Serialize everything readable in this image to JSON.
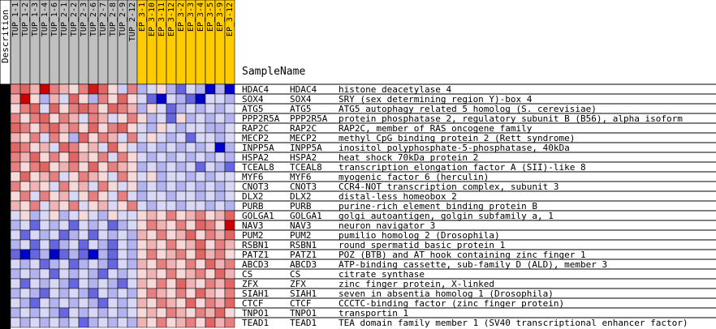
{
  "chart_data": {
    "type": "heatmap",
    "header": {
      "description_label": "Descrition",
      "sample_name_label": "SampleName"
    },
    "columns": [
      "TUP_1-1",
      "TUP_1-2",
      "TUP_1-3",
      "TUP_1-4",
      "TUP_1-6",
      "TUP_2-1",
      "TUP_2-2",
      "TUP_2-3",
      "TUP_2-6",
      "TUP_2-7",
      "TUP_2-8",
      "TUP_2-9",
      "TUP_2-12",
      "EP_3-1",
      "EP_3-10",
      "EP_3-11",
      "EP_3-12",
      "EP_3-2",
      "EP_3-3",
      "EP_3-4",
      "EP_3-5",
      "EP_3-9",
      "EP_3-12"
    ],
    "column_groups": [
      {
        "name": "TUP",
        "count": 13,
        "color": "#c0c0c0"
      },
      {
        "name": "EP",
        "count": 10,
        "color": "#ffcc00"
      }
    ],
    "rows": [
      {
        "name": "HDAC4",
        "symbol": "HDAC4",
        "desc": "histone deacetylase 4"
      },
      {
        "name": "SOX4",
        "symbol": "SOX4",
        "desc": "SRY (sex determining region Y)-box 4"
      },
      {
        "name": "ATG5",
        "symbol": "ATG5",
        "desc": "ATG5 autophagy related 5 homolog (S. cerevisiae)"
      },
      {
        "name": "PPP2R5A",
        "symbol": "PPP2R5A",
        "desc": "protein phosphatase 2, regulatory subunit B (B56), alpha isoform"
      },
      {
        "name": "RAP2C",
        "symbol": "RAP2C",
        "desc": "RAP2C, member of RAS oncogene family"
      },
      {
        "name": "MECP2",
        "symbol": "MECP2",
        "desc": "methyl CpG binding protein 2 (Rett syndrome)"
      },
      {
        "name": "INPP5A",
        "symbol": "INPP5A",
        "desc": "inositol polyphosphate-5-phosphatase, 40kDa"
      },
      {
        "name": "HSPA2",
        "symbol": "HSPA2",
        "desc": "heat shock 70kDa protein 2"
      },
      {
        "name": "TCEAL8",
        "symbol": "TCEAL8",
        "desc": "transcription elongation factor A (SII)-like 8"
      },
      {
        "name": "MYF6",
        "symbol": "MYF6",
        "desc": "myogenic factor 6 (herculin)"
      },
      {
        "name": "CNOT3",
        "symbol": "CNOT3",
        "desc": "CCR4-NOT transcription complex, subunit 3"
      },
      {
        "name": "DLX2",
        "symbol": "DLX2",
        "desc": "distal-less homeobox 2"
      },
      {
        "name": "PURB",
        "symbol": "PURB",
        "desc": "purine-rich element binding protein B"
      },
      {
        "name": "GOLGA1",
        "symbol": "GOLGA1",
        "desc": "golgi autoantigen, golgin subfamily a, 1"
      },
      {
        "name": "NAV3",
        "symbol": "NAV3",
        "desc": "neuron navigator 3"
      },
      {
        "name": "PUM2",
        "symbol": "PUM2",
        "desc": "pumilio homolog 2 (Drosophila)"
      },
      {
        "name": "RSBN1",
        "symbol": "RSBN1",
        "desc": "round spermatid basic protein 1"
      },
      {
        "name": "PATZ1",
        "symbol": "PATZ1",
        "desc": "POZ (BTB) and AT hook containing zinc finger 1"
      },
      {
        "name": "ABCD3",
        "symbol": "ABCD3",
        "desc": "ATP-binding cassette, sub-family D (ALD), member 3"
      },
      {
        "name": "CS",
        "symbol": "CS",
        "desc": "citrate synthase"
      },
      {
        "name": "ZFX",
        "symbol": "ZFX",
        "desc": "zinc finger protein, X-linked"
      },
      {
        "name": "SIAH1",
        "symbol": "SIAH1",
        "desc": "seven in absentia homolog 1 (Drosophila)"
      },
      {
        "name": "CTCF",
        "symbol": "CTCF",
        "desc": "CCCTC-binding factor (zinc finger protein)"
      },
      {
        "name": "TNPO1",
        "symbol": "TNPO1",
        "desc": "transportin 1"
      },
      {
        "name": "TEAD1",
        "symbol": "TEAD1",
        "desc": "TEA domain family member 1 (SV40 transcriptional enhancer factor)"
      }
    ],
    "scale": {
      "min": -2,
      "max": 2,
      "low_color": "#0000cc",
      "mid_color": "#ffffff",
      "high_color": "#cc0000"
    },
    "values": [
      [
        1.0,
        1.2,
        0.6,
        2,
        1.0,
        0.6,
        0.3,
        1.0,
        1.8,
        1.2,
        0.3,
        -0.4,
        1.0,
        -0.6,
        -0.3,
        0.3,
        -0.6,
        -1.2,
        -0.3,
        -0.6,
        -2,
        -0.6,
        -2
      ],
      [
        0.6,
        2,
        0.3,
        -0.6,
        0.6,
        -0.3,
        1.2,
        0.3,
        -0.6,
        1.0,
        0.3,
        1.2,
        0.3,
        -0.3,
        -1.2,
        -2,
        -0.3,
        -0.6,
        -1.2,
        -2,
        -0.3,
        -0.3,
        -0.6
      ],
      [
        0.3,
        1.0,
        1.2,
        -0.3,
        1.2,
        0.3,
        1.0,
        1.2,
        1.0,
        0.3,
        1.2,
        1.0,
        0.6,
        -0.6,
        0.3,
        -0.3,
        -1.2,
        -0.6,
        -0.3,
        -0.6,
        -0.3,
        -0.6,
        -0.3
      ],
      [
        1.0,
        0.3,
        1.0,
        1.2,
        0.3,
        1.0,
        0.6,
        -0.3,
        1.0,
        0.6,
        -0.3,
        0.3,
        1.0,
        0.3,
        -0.6,
        -0.3,
        -1.2,
        0.3,
        -0.6,
        -0.3,
        -0.6,
        -0.3,
        -0.6
      ],
      [
        1.2,
        1.0,
        0.3,
        1.0,
        1.2,
        0.6,
        1.0,
        0.3,
        1.2,
        0.3,
        1.0,
        1.2,
        0.3,
        -0.3,
        -0.6,
        0.3,
        -0.3,
        -0.6,
        -0.3,
        -0.3,
        -0.6,
        -0.6,
        -0.3
      ],
      [
        0.6,
        0.3,
        1.0,
        -0.3,
        1.0,
        0.3,
        -0.6,
        1.2,
        0.3,
        1.0,
        0.6,
        -0.3,
        1.0,
        -0.3,
        0.3,
        -0.3,
        -0.6,
        -0.3,
        -1.2,
        -0.3,
        -0.3,
        -0.6,
        -0.3
      ],
      [
        1.2,
        1.0,
        0.3,
        0.6,
        -0.3,
        1.2,
        1.0,
        0.3,
        0.6,
        -0.3,
        1.2,
        0.3,
        -0.3,
        -0.6,
        -0.3,
        -0.6,
        -0.3,
        -0.6,
        -0.3,
        -0.6,
        -0.3,
        -2,
        -0.6
      ],
      [
        1.0,
        0.6,
        1.2,
        0.3,
        1.0,
        0.3,
        1.2,
        0.6,
        0.3,
        1.0,
        -0.3,
        1.0,
        0.3,
        -0.3,
        -0.6,
        -0.3,
        -0.6,
        -0.3,
        -0.6,
        -0.3,
        -0.6,
        -0.3,
        -0.6
      ],
      [
        1.0,
        0.3,
        1.0,
        1.2,
        0.3,
        0.6,
        1.0,
        0.3,
        1.2,
        0.3,
        1.0,
        0.6,
        0.3,
        -0.6,
        -0.3,
        -0.6,
        -0.3,
        -0.6,
        -0.3,
        -1.2,
        -0.3,
        -0.6,
        -1.2
      ],
      [
        0.3,
        1.2,
        0.3,
        0.6,
        1.0,
        -0.3,
        0.3,
        1.0,
        0.6,
        0.3,
        -0.3,
        1.0,
        0.3,
        -0.3,
        0.3,
        -0.6,
        -0.3,
        -0.3,
        -0.6,
        -0.3,
        -0.6,
        -0.3,
        -0.3
      ],
      [
        1.0,
        0.3,
        0.6,
        0.3,
        -0.3,
        1.0,
        0.3,
        0.6,
        -0.3,
        1.0,
        0.3,
        -0.3,
        0.3,
        -0.6,
        -0.3,
        -0.6,
        -0.3,
        -0.6,
        -0.3,
        -0.6,
        -0.3,
        -0.6,
        -0.3
      ],
      [
        0.3,
        1.0,
        -0.3,
        1.0,
        0.3,
        0.6,
        -0.3,
        0.3,
        1.0,
        0.3,
        -0.3,
        1.0,
        -0.3,
        -0.6,
        -0.3,
        -0.3,
        -0.6,
        -0.3,
        -0.3,
        -0.6,
        -0.3,
        -0.6,
        -0.3
      ],
      [
        0.6,
        0.3,
        1.0,
        -0.3,
        0.6,
        0.3,
        1.0,
        -0.3,
        0.3,
        0.6,
        -0.3,
        0.3,
        1.0,
        -0.3,
        -0.6,
        -0.3,
        -0.3,
        -0.6,
        -0.3,
        -0.3,
        -0.6,
        -0.3,
        -0.6
      ],
      [
        -0.3,
        0.3,
        -0.6,
        -0.3,
        0.3,
        -0.6,
        -0.3,
        0.3,
        -0.3,
        -0.6,
        0.3,
        -0.3,
        -0.3,
        0.3,
        0.6,
        0.3,
        1.0,
        0.3,
        0.6,
        1.0,
        0.3,
        0.6,
        1.2
      ],
      [
        -0.6,
        -0.3,
        -1.2,
        -0.3,
        -0.6,
        -0.3,
        -1.2,
        -0.3,
        -0.6,
        -0.3,
        -1.2,
        -0.6,
        -0.3,
        0.3,
        1.0,
        0.6,
        0.3,
        1.0,
        0.3,
        1.2,
        1.0,
        0.3,
        2
      ],
      [
        -0.3,
        -1.2,
        -0.3,
        -0.6,
        -0.3,
        -1.2,
        -0.6,
        -0.3,
        -1.2,
        -0.3,
        -0.6,
        -0.3,
        -0.6,
        0.6,
        0.3,
        1.0,
        0.3,
        0.6,
        1.2,
        0.3,
        1.0,
        0.6,
        1.2
      ],
      [
        -0.6,
        -0.3,
        -1.2,
        -0.3,
        -1.2,
        -0.6,
        -0.3,
        -1.2,
        -0.3,
        -0.6,
        -1.2,
        -0.3,
        -0.6,
        0.3,
        0.6,
        0.3,
        1.0,
        0.3,
        0.6,
        1.2,
        0.3,
        1.0,
        0.6
      ],
      [
        -1.2,
        -2,
        -1.2,
        -0.6,
        -2,
        -1.2,
        -0.6,
        -1.2,
        -2,
        -0.6,
        -1.2,
        -0.3,
        -0.6,
        0.3,
        1.0,
        0.3,
        0.6,
        1.0,
        0.3,
        1.2,
        0.6,
        1.0,
        0.3
      ],
      [
        -0.3,
        -0.6,
        -0.3,
        -1.2,
        -0.6,
        -0.3,
        -1.2,
        -0.6,
        -0.3,
        -0.6,
        -1.2,
        -0.3,
        -0.6,
        0.6,
        0.3,
        1.0,
        0.6,
        0.3,
        1.0,
        0.3,
        1.2,
        0.6,
        1.0
      ],
      [
        -0.6,
        -0.3,
        -0.6,
        -0.3,
        -1.2,
        -0.3,
        -0.6,
        -0.3,
        -0.6,
        -1.2,
        -0.3,
        -0.6,
        -0.3,
        0.3,
        0.6,
        0.3,
        1.0,
        0.3,
        0.6,
        1.0,
        0.3,
        1.2,
        0.6
      ],
      [
        -0.3,
        -1.2,
        -0.3,
        -0.6,
        -0.3,
        -0.6,
        -1.2,
        -0.3,
        -0.6,
        -0.3,
        -0.6,
        -1.2,
        -0.3,
        0.6,
        0.3,
        1.0,
        0.3,
        1.2,
        0.6,
        0.3,
        1.0,
        0.6,
        1.2
      ],
      [
        -0.6,
        -0.3,
        -0.6,
        -1.2,
        -0.3,
        -0.6,
        -0.3,
        -0.6,
        -1.2,
        -0.3,
        -0.6,
        -0.3,
        -0.6,
        0.3,
        1.0,
        0.6,
        0.3,
        1.0,
        0.3,
        1.2,
        0.6,
        0.3,
        1.0
      ],
      [
        -0.3,
        -0.6,
        -1.2,
        -0.3,
        -0.6,
        -0.3,
        -0.6,
        -0.3,
        -0.6,
        -1.2,
        -0.3,
        -0.6,
        -0.3,
        0.6,
        0.3,
        1.0,
        0.6,
        0.3,
        1.2,
        0.3,
        1.0,
        0.6,
        1.2
      ],
      [
        -0.6,
        -0.3,
        -0.6,
        -0.3,
        -0.6,
        -1.2,
        -0.3,
        -0.6,
        -0.3,
        -0.6,
        -0.3,
        -0.6,
        -0.3,
        0.3,
        0.6,
        0.3,
        1.0,
        0.6,
        0.3,
        1.0,
        0.6,
        1.2,
        0.3
      ],
      [
        -0.3,
        -0.6,
        -0.3,
        -0.6,
        -0.3,
        -0.6,
        -0.3,
        -1.2,
        -0.6,
        -0.3,
        -0.6,
        -0.3,
        -0.6,
        0.6,
        0.3,
        1.0,
        0.3,
        0.6,
        1.0,
        0.3,
        1.2,
        0.6,
        1.0
      ]
    ]
  }
}
